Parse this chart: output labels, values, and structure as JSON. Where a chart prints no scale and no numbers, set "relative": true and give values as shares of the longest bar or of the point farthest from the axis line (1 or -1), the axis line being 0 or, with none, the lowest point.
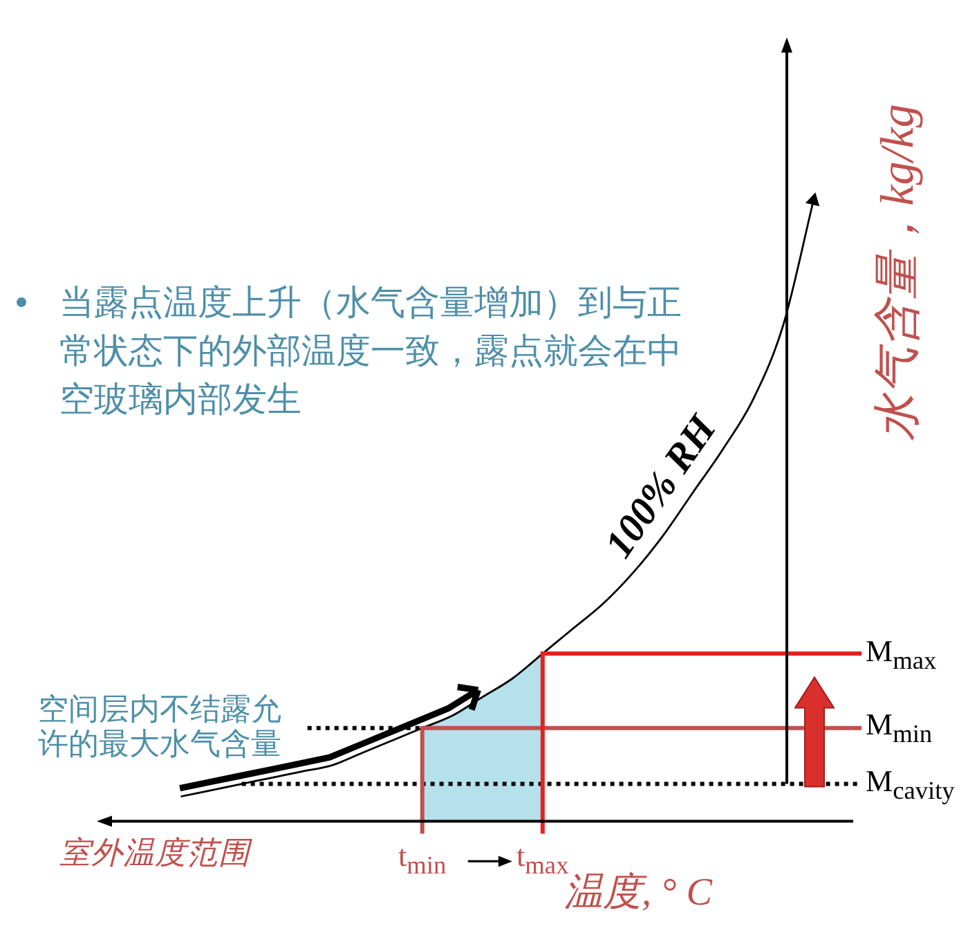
{
  "chart_data": {
    "type": "line",
    "relative": true,
    "xlabel": "温度, ° C",
    "ylabel": "水气含量，kg/kg",
    "categories": [
      null,
      null,
      null,
      null,
      null,
      null,
      null,
      null,
      null,
      null,
      null,
      "t$_{min}$",
      null,
      null,
      null,
      "t$_{max}$",
      null,
      null,
      null,
      null,
      null,
      null,
      null,
      null,
      null,
      null
    ],
    "series": [
      {
        "name": "100% RH",
        "color": "#000000",
        "values": [
          null,
          null,
          null,
          0.04,
          0.05,
          0.06,
          0.07,
          0.08,
          0.09,
          0.11,
          0.13,
          0.15,
          0.17,
          0.2,
          0.23,
          0.27,
          0.31,
          0.35,
          0.4,
          0.46,
          0.53,
          0.6,
          0.68,
          0.8,
          1,
          null
        ]
      },
      {
        "type": "area",
        "color": "#b4e1ec",
        "values": [
          null,
          null,
          null,
          null,
          null,
          null,
          null,
          null,
          null,
          null,
          null,
          0.15,
          0.17,
          0.2,
          0.23,
          0.27,
          null,
          null,
          null,
          null,
          null,
          null,
          null,
          null,
          null,
          null
        ]
      }
    ],
    "ref_lines": [
      {
        "axis": "x",
        "value": "t$_{max}$",
        "color": "#e8211f"
      },
      {
        "axis": "x",
        "value": "t$_{min}$",
        "color": "#c0504d"
      },
      {
        "axis": "y",
        "value": 0.27,
        "label": "M$_{max}$",
        "color": "#e8211f"
      },
      {
        "axis": "y",
        "value": 0.15,
        "label": "M$_{min}$",
        "color": "#c0504d"
      },
      {
        "axis": "y",
        "value": 0.06,
        "label": "M$_{cavity}$",
        "color": "#000000",
        "line_style": "dotted"
      },
      {
        "axis": "y",
        "value": 0.15,
        "label": "空间层内不结露允许的最大水气含量",
        "color": "#000000",
        "line_style": "dotted"
      }
    ],
    "annotations": [
      "当露点温度上升（水气含量增加）到与正常状态下的外部温度一致，露点就会在中空玻璃内部发生",
      "室外温度范围"
    ]
  }
}
